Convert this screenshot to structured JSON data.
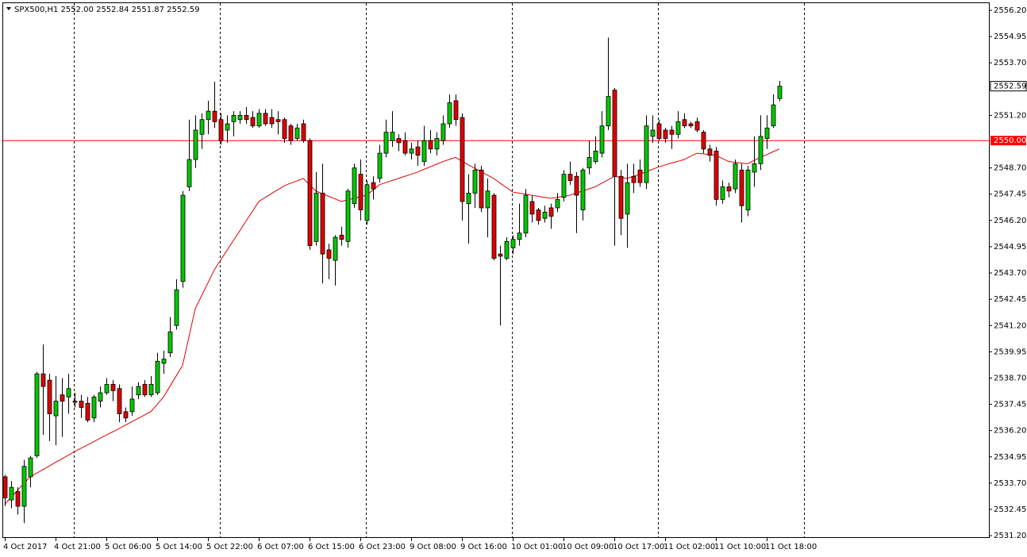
{
  "chart_data": {
    "type": "candlestick",
    "title": "SPX500,H1  2552.00 2552.84 2551.87 2552.59",
    "categories": [
      "4 Oct 2017",
      null,
      null,
      null,
      null,
      null,
      null,
      null,
      "4 Oct 21:00",
      null,
      null,
      null,
      null,
      null,
      null,
      null,
      "5 Oct 06:00",
      null,
      null,
      null,
      null,
      null,
      null,
      null,
      "5 Oct 14:00",
      null,
      null,
      null,
      null,
      null,
      null,
      null,
      "5 Oct 22:00",
      null,
      null,
      null,
      null,
      null,
      null,
      null,
      "6 Oct 07:00",
      null,
      null,
      null,
      null,
      null,
      null,
      null,
      "6 Oct 15:00",
      null,
      null,
      null,
      null,
      null,
      null,
      null,
      "6 Oct 23:00",
      null,
      null,
      null,
      null,
      null,
      null,
      null,
      "9 Oct 08:00",
      null,
      null,
      null,
      null,
      null,
      null,
      null,
      "9 Oct 16:00",
      null,
      null,
      null,
      null,
      null,
      null,
      null,
      "10 Oct 01:00",
      null,
      null,
      null,
      null,
      null,
      null,
      null,
      "10 Oct 09:00",
      null,
      null,
      null,
      null,
      null,
      null,
      null,
      "10 Oct 17:00",
      null,
      null,
      null,
      null,
      null,
      null,
      null,
      "11 Oct 02:00",
      null,
      null,
      null,
      null,
      null,
      null,
      null,
      "11 Oct 10:00",
      null,
      null,
      null,
      null,
      null,
      null,
      null,
      "11 Oct 18:00",
      null,
      null
    ],
    "open": [
      2534.0,
      2532.9,
      2533.3,
      2532.6,
      2534.0,
      2535.0,
      2538.9,
      2538.6,
      2536.9,
      2537.9,
      2537.8,
      2537.6,
      2537.6,
      2537.5,
      2536.8,
      2537.6,
      2538.0,
      2538.4,
      2538.2,
      2537.1,
      2537.1,
      2537.9,
      2538.4,
      2537.9,
      2538.0,
      2539.4,
      2539.9,
      2541.2,
      2543.3,
      2547.8,
      2549.1,
      2550.3,
      2551.0,
      2551.4,
      2551.0,
      2550.5,
      2550.9,
      2551.0,
      2551.2,
      2551.1,
      2550.7,
      2551.3,
      2551.1,
      2551.0,
      2551.0,
      2550.7,
      2550.1,
      2550.8,
      2550.0,
      2545.2,
      2547.5,
      2544.8,
      2544.3,
      2545.5,
      2545.2,
      2547.0,
      2548.4,
      2546.2,
      2548.0,
      2548.2,
      2549.4,
      2550.0,
      2550.1,
      2550.0,
      2549.4,
      2549.7,
      2549.0,
      2550.0,
      2549.6,
      2550.0,
      2550.8,
      2551.9,
      2551.1,
      2547.0,
      2547.5,
      2548.6,
      2546.8,
      2547.4,
      2544.6,
      2544.4,
      2544.9,
      2545.3,
      2545.6,
      2547.1,
      2546.7,
      2546.3,
      2546.8,
      2546.8,
      2547.3,
      2548.4,
      2548.3,
      2546.7,
      2548.7,
      2549.0,
      2549.4,
      2550.7,
      2552.4,
      2548.3,
      2546.5,
      2548.3,
      2548.6,
      2548.0,
      2550.2,
      2550.8,
      2550.5,
      2550.5,
      2550.3,
      2551.0,
      2550.8,
      2550.9,
      2550.4,
      2549.6,
      2549.5,
      2547.2,
      2547.8,
      2547.7,
      2548.6,
      2546.7,
      2548.5,
      2548.9,
      2550.1,
      2550.7,
      2552.0
    ],
    "high": [
      2534.1,
      2533.8,
      2533.5,
      2534.8,
      2535.0,
      2539.0,
      2540.3,
      2538.9,
      2538.8,
      2538.7,
      2538.9,
      2538.0,
      2537.9,
      2537.8,
      2537.9,
      2538.3,
      2538.7,
      2538.6,
      2538.4,
      2537.3,
      2538.3,
      2538.5,
      2538.6,
      2538.8,
      2539.9,
      2540.0,
      2541.6,
      2543.4,
      2547.6,
      2551.0,
      2551.2,
      2551.3,
      2551.9,
      2552.8,
      2551.3,
      2551.2,
      2551.4,
      2551.4,
      2551.6,
      2551.4,
      2551.5,
      2551.5,
      2551.5,
      2551.4,
      2551.1,
      2550.8,
      2550.8,
      2551.0,
      2550.1,
      2548.5,
      2548.9,
      2545.1,
      2545.5,
      2545.9,
      2547.7,
      2548.9,
      2549.1,
      2548.1,
      2548.3,
      2549.8,
      2551.0,
      2551.4,
      2550.3,
      2550.4,
      2549.9,
      2550.0,
      2550.7,
      2550.5,
      2550.4,
      2551.2,
      2552.2,
      2552.2,
      2551.3,
      2548.4,
      2548.9,
      2548.8,
      2548.2,
      2547.5,
      2545.0,
      2545.4,
      2545.5,
      2547.0,
      2547.7,
      2547.4,
      2546.8,
      2546.9,
      2547.0,
      2547.5,
      2548.6,
      2549.0,
      2548.5,
      2548.7,
      2550.0,
      2550.2,
      2551.4,
      2554.9,
      2552.5,
      2548.6,
      2548.9,
      2548.9,
      2549.1,
      2551.2,
      2551.2,
      2551.0,
      2550.6,
      2550.7,
      2551.4,
      2551.3,
      2550.9,
      2551.1,
      2550.5,
      2549.8,
      2549.7,
      2548.1,
      2548.0,
      2549.1,
      2548.9,
      2548.8,
      2550.2,
      2551.2,
      2551.2,
      2552.2,
      2552.84
    ],
    "low": [
      2532.6,
      2532.5,
      2532.2,
      2531.8,
      2533.5,
      2534.9,
      2536.0,
      2535.7,
      2535.5,
      2535.9,
      2537.0,
      2537.3,
      2536.8,
      2536.6,
      2536.6,
      2537.3,
      2537.9,
      2537.6,
      2536.6,
      2536.6,
      2536.9,
      2537.7,
      2537.8,
      2537.8,
      2537.9,
      2538.9,
      2539.7,
      2541.0,
      2543.0,
      2547.6,
      2548.7,
      2549.6,
      2550.3,
      2550.6,
      2549.8,
      2549.9,
      2550.2,
      2550.8,
      2550.8,
      2550.6,
      2550.6,
      2550.7,
      2550.6,
      2550.3,
      2549.9,
      2549.8,
      2550.0,
      2549.9,
      2544.8,
      2545.0,
      2543.2,
      2543.4,
      2543.1,
      2545.0,
      2544.9,
      2546.8,
      2546.2,
      2546.0,
      2547.2,
      2548.0,
      2549.2,
      2549.7,
      2549.5,
      2549.3,
      2549.1,
      2548.8,
      2548.8,
      2549.4,
      2549.3,
      2549.8,
      2550.6,
      2550.7,
      2546.2,
      2545.1,
      2546.8,
      2546.6,
      2545.4,
      2544.3,
      2541.2,
      2544.3,
      2544.6,
      2545.0,
      2545.4,
      2546.1,
      2546.0,
      2546.1,
      2545.8,
      2546.6,
      2547.1,
      2547.9,
      2545.6,
      2546.2,
      2548.4,
      2548.9,
      2549.2,
      2550.5,
      2545.0,
      2545.5,
      2544.9,
      2547.5,
      2547.8,
      2547.7,
      2549.9,
      2550.0,
      2549.9,
      2549.6,
      2550.1,
      2550.6,
      2550.6,
      2550.4,
      2549.4,
      2549.0,
      2546.9,
      2547.0,
      2547.3,
      2547.5,
      2546.1,
      2546.4,
      2547.8,
      2548.6,
      2549.6,
      2550.6,
      2551.87
    ],
    "close": [
      2533.0,
      2533.5,
      2532.6,
      2534.5,
      2534.9,
      2538.9,
      2538.3,
      2537.0,
      2537.6,
      2537.6,
      2538.2,
      2537.55,
      2537.3,
      2536.7,
      2537.8,
      2538.0,
      2538.4,
      2538.1,
      2537.0,
      2536.8,
      2537.7,
      2538.3,
      2537.9,
      2538.4,
      2539.5,
      2539.6,
      2540.9,
      2542.9,
      2547.4,
      2549.1,
      2550.5,
      2551.0,
      2551.4,
      2550.9,
      2550.0,
      2550.8,
      2551.2,
      2551.2,
      2551.0,
      2550.7,
      2551.3,
      2550.8,
      2550.8,
      2550.9,
      2550.1,
      2550.0,
      2550.6,
      2550.0,
      2545.0,
      2547.5,
      2544.6,
      2544.4,
      2545.4,
      2545.3,
      2547.6,
      2548.7,
      2546.7,
      2547.9,
      2547.7,
      2549.4,
      2550.4,
      2550.4,
      2549.9,
      2549.4,
      2549.6,
      2549.3,
      2550.0,
      2549.6,
      2550.1,
      2550.8,
      2551.8,
      2551.0,
      2547.1,
      2547.5,
      2548.6,
      2546.8,
      2547.6,
      2544.4,
      2544.5,
      2545.2,
      2545.3,
      2545.6,
      2547.4,
      2546.5,
      2546.2,
      2546.6,
      2546.4,
      2547.2,
      2548.4,
      2548.1,
      2547.4,
      2548.6,
      2549.2,
      2549.5,
      2550.7,
      2552.1,
      2548.3,
      2546.3,
      2548.0,
      2548.0,
      2548.0,
      2550.7,
      2550.5,
      2550.1,
      2550.1,
      2550.3,
      2550.9,
      2550.7,
      2550.7,
      2550.5,
      2549.6,
      2549.3,
      2547.2,
      2547.8,
      2547.6,
      2548.9,
      2546.9,
      2548.6,
      2548.9,
      2550.2,
      2550.6,
      2551.7,
      2552.59
    ],
    "up_color": "#00c800",
    "down_color": "#e00000",
    "overlay_line": {
      "color": "#e00000",
      "values": [
        2532.7,
        2533.03,
        2533.35,
        2533.68,
        2534.0,
        2534.17,
        2534.34,
        2534.51,
        2534.69,
        2534.86,
        2535.03,
        2535.2,
        2535.36,
        2535.51,
        2535.67,
        2535.83,
        2535.99,
        2536.14,
        2536.3,
        2536.46,
        2536.62,
        2536.78,
        2536.94,
        2537.1,
        2537.45,
        2537.8,
        2538.3,
        2538.8,
        2539.3,
        2540.65,
        2542.0,
        2542.62,
        2543.23,
        2543.85,
        2544.31,
        2544.78,
        2545.24,
        2545.7,
        2546.17,
        2546.63,
        2547.1,
        2547.29,
        2547.48,
        2547.66,
        2547.85,
        2547.97,
        2548.08,
        2548.2,
        2547.9,
        2547.6,
        2547.48,
        2547.35,
        2547.23,
        2547.1,
        2547.18,
        2547.25,
        2547.33,
        2547.4,
        2547.65,
        2547.9,
        2548.0,
        2548.1,
        2548.2,
        2548.3,
        2548.4,
        2548.5,
        2548.63,
        2548.75,
        2548.88,
        2549.0,
        2549.1,
        2549.2,
        2549.03,
        2548.85,
        2548.69,
        2548.53,
        2548.36,
        2548.2,
        2547.98,
        2547.77,
        2547.55,
        2547.5,
        2547.45,
        2547.4,
        2547.35,
        2547.3,
        2547.25,
        2547.3,
        2547.35,
        2547.4,
        2547.5,
        2547.6,
        2547.7,
        2547.8,
        2547.97,
        2548.13,
        2548.3,
        2548.25,
        2548.2,
        2548.3,
        2548.4,
        2548.52,
        2548.63,
        2548.75,
        2548.84,
        2548.93,
        2549.01,
        2549.1,
        2549.25,
        2549.4,
        2549.37,
        2549.33,
        2549.3,
        2549.15,
        2549.0,
        2548.97,
        2548.93,
        2548.9,
        2549.05,
        2549.2,
        2549.33,
        2549.47,
        2549.6
      ]
    },
    "hline": {
      "value": 2550,
      "label": "2550.00",
      "color": "#ff0000"
    },
    "last_price": {
      "value": 2552.59,
      "label": "2552.59"
    },
    "ylim": [
      2531.09,
      2556.54
    ],
    "yticks": [
      {
        "value": 2556.2,
        "label": "2556.20"
      },
      {
        "value": 2554.95,
        "label": "2554.95"
      },
      {
        "value": 2553.7,
        "label": "2553.70"
      },
      {
        "value": 2551.2,
        "label": "2551.20"
      },
      {
        "value": 2548.7,
        "label": "2548.70"
      },
      {
        "value": 2547.45,
        "label": "2547.45"
      },
      {
        "value": 2546.2,
        "label": "2546.20"
      },
      {
        "value": 2544.95,
        "label": "2544.95"
      },
      {
        "value": 2543.7,
        "label": "2543.70"
      },
      {
        "value": 2542.45,
        "label": "2542.45"
      },
      {
        "value": 2541.2,
        "label": "2541.20"
      },
      {
        "value": 2539.95,
        "label": "2539.95"
      },
      {
        "value": 2538.7,
        "label": "2538.70"
      },
      {
        "value": 2537.45,
        "label": "2537.45"
      },
      {
        "value": 2536.2,
        "label": "2536.20"
      },
      {
        "value": 2534.95,
        "label": "2534.95"
      },
      {
        "value": 2533.7,
        "label": "2533.70"
      },
      {
        "value": 2532.45,
        "label": "2532.45"
      },
      {
        "value": 2531.2,
        "label": "2531.20"
      }
    ]
  }
}
